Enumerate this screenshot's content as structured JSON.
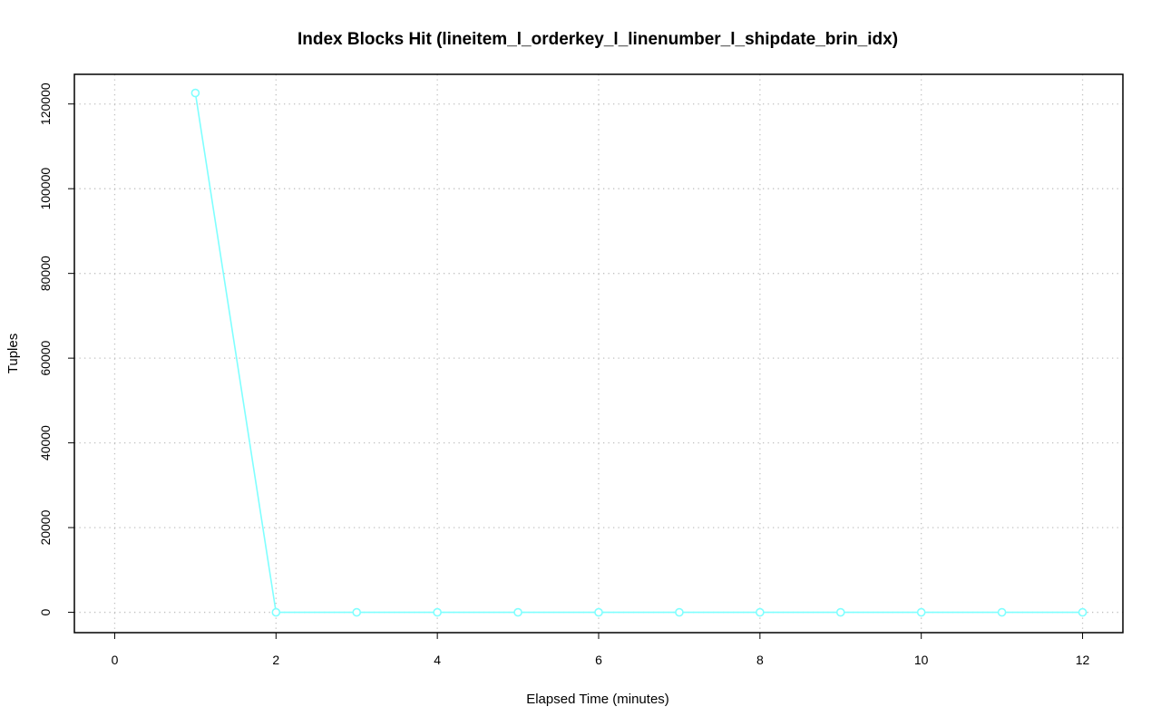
{
  "chart_data": {
    "type": "line",
    "title": "Index Blocks Hit (lineitem_l_orderkey_l_linenumber_l_shipdate_brin_idx)",
    "xlabel": "Elapsed Time (minutes)",
    "ylabel": "Tuples",
    "xlim": [
      -0.5,
      12.5
    ],
    "ylim": [
      -4800,
      127000
    ],
    "x_ticks": [
      0,
      2,
      4,
      6,
      8,
      10,
      12
    ],
    "y_ticks": [
      0,
      20000,
      40000,
      60000,
      80000,
      100000,
      120000
    ],
    "x_tick_labels": [
      "0",
      "2",
      "4",
      "6",
      "8",
      "10",
      "12"
    ],
    "y_tick_labels": [
      "0",
      "20000",
      "40000",
      "60000",
      "80000",
      "100000",
      "120000"
    ],
    "grid": true,
    "series": [
      {
        "color": "#7fffff",
        "x": [
          1,
          2,
          3,
          4,
          5,
          6,
          7,
          8,
          9,
          10,
          11,
          12
        ],
        "y": [
          122600,
          0,
          0,
          0,
          0,
          0,
          0,
          0,
          0,
          0,
          0,
          0
        ]
      }
    ]
  }
}
